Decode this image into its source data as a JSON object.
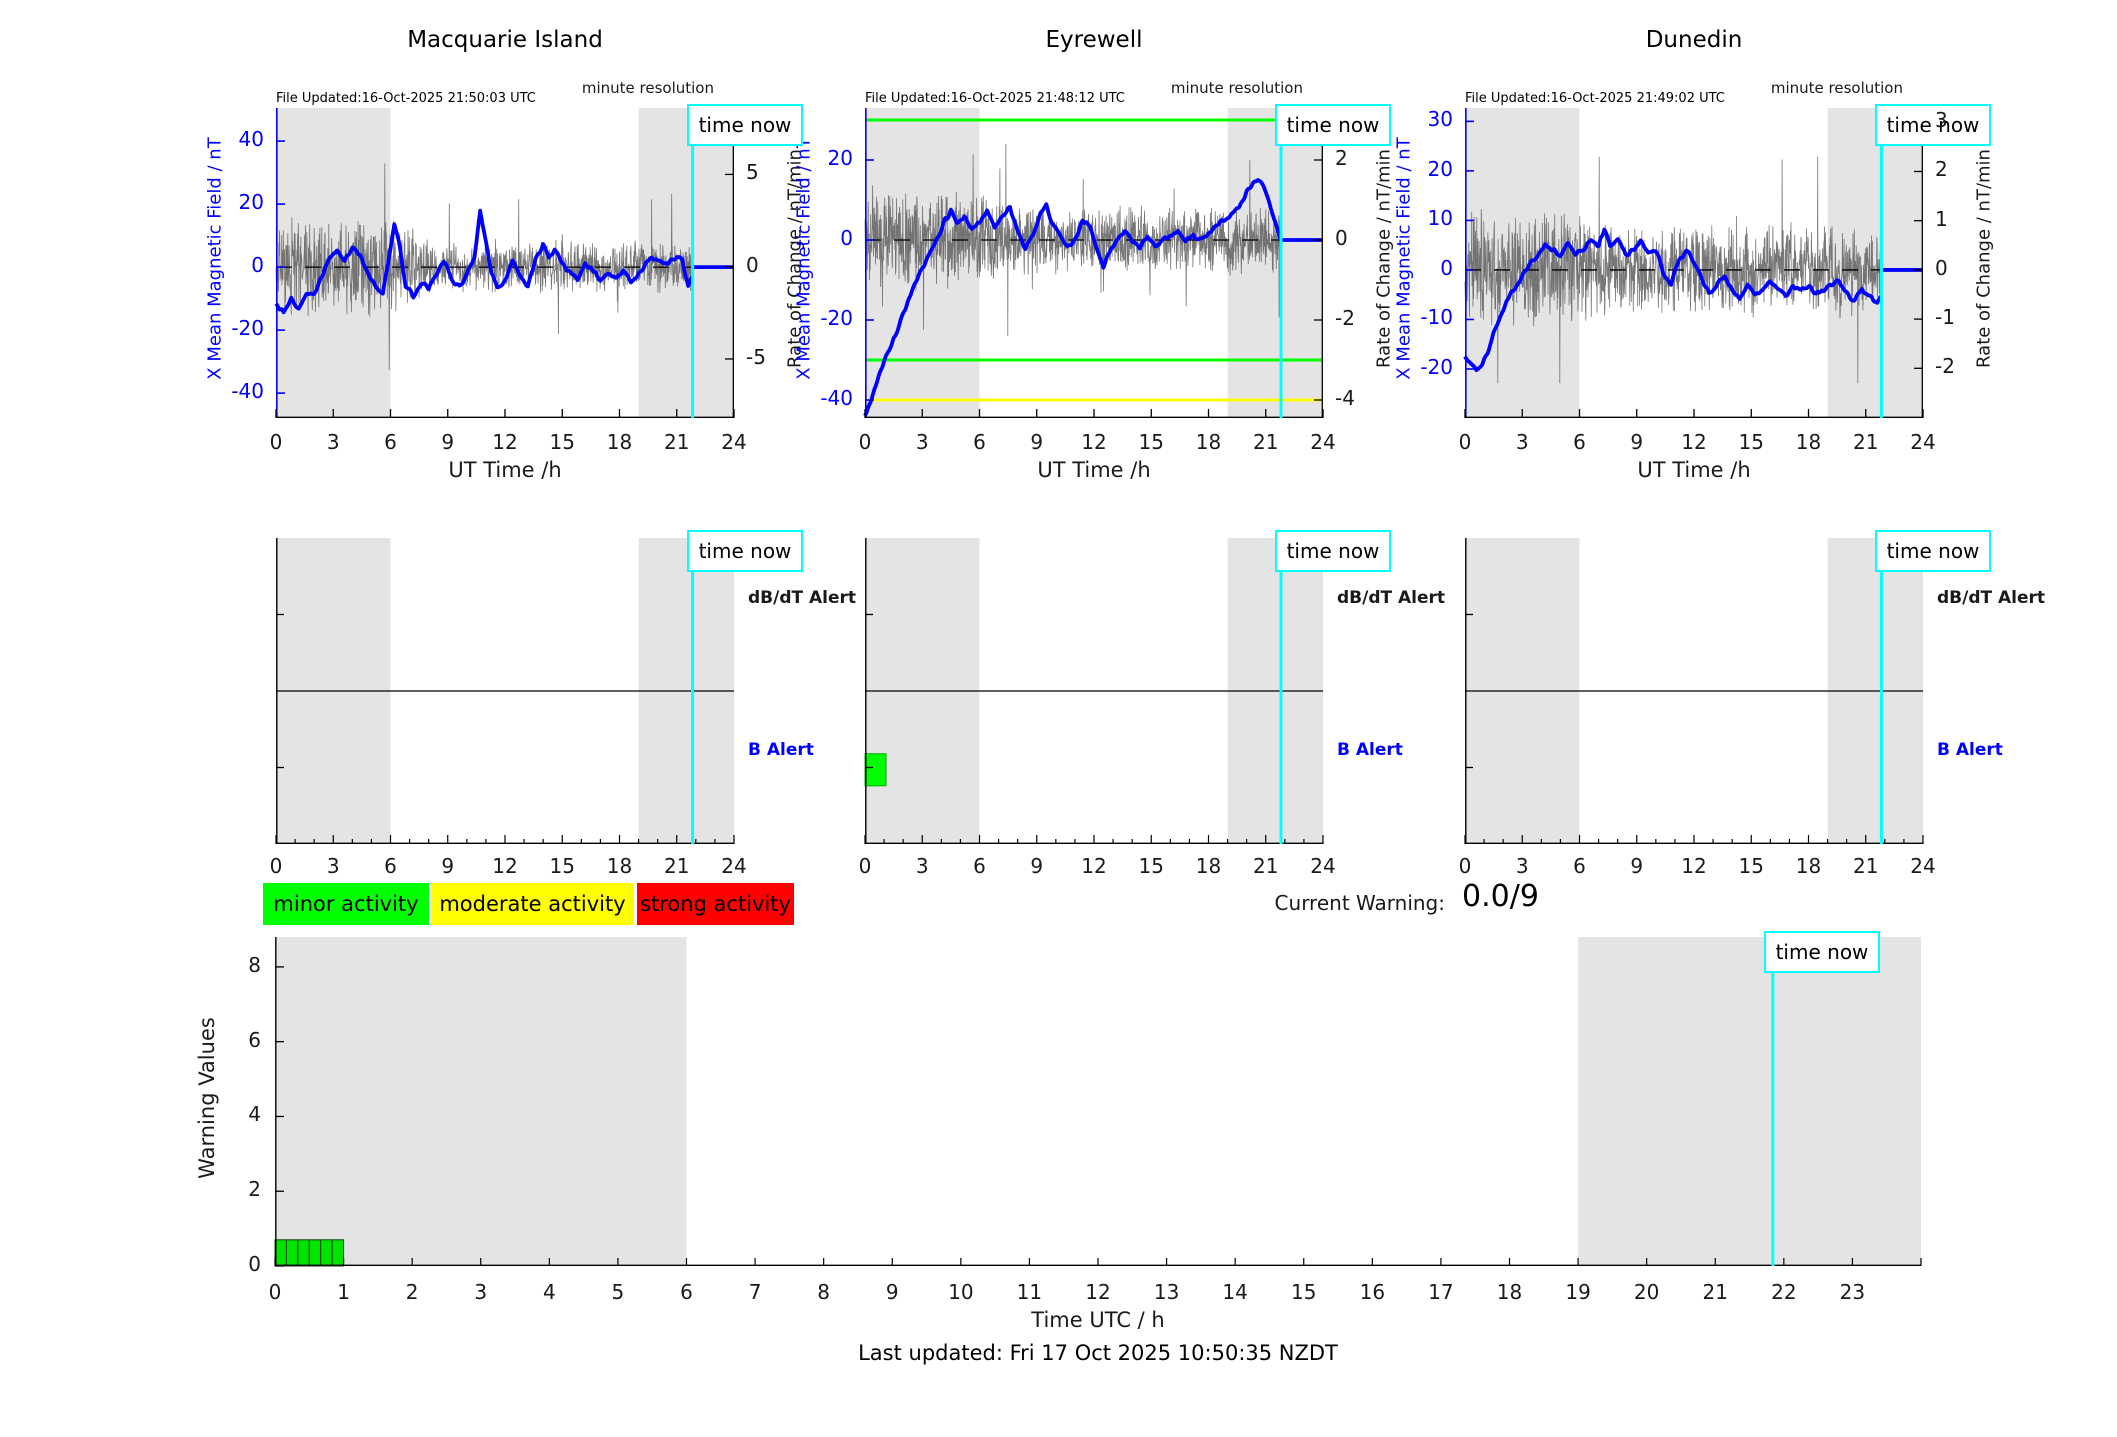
{
  "labels": {
    "time_now": "time now",
    "db_dt_alert": "dB/dT Alert",
    "b_alert": "B Alert"
  },
  "colors": {
    "night_band": "#e4e4e4",
    "mean_field": "#0000ff",
    "noise": "#5f5f5f",
    "time_now_line": "#00ffff",
    "axis": "#1a1a1a",
    "zero_line": "#000000",
    "threshold_green": "#00ff00",
    "threshold_yellow": "#ffff00",
    "alert_bar_green": "#00ff00",
    "warning_bar_green": "#00e400"
  },
  "legend": [
    {
      "label": "minor activity",
      "color": "#00ff00"
    },
    {
      "label": "moderate activity",
      "color": "#ffff00"
    },
    {
      "label": "strong activity",
      "color": "#ff0000"
    }
  ],
  "current_warning": {
    "label": "Current Warning:",
    "value": "0.0/9"
  },
  "footer": {
    "last_updated": "Last updated: Fri 17 Oct 2025 10:50:35 NZDT"
  },
  "chart_data": [
    {
      "id": "chart-macquarie",
      "type": "line",
      "station": "Macquarie Island",
      "title": "Macquarie Island",
      "file_updated": "File Updated:16-Oct-2025 21:50:03 UTC",
      "minute_resolution": "minute resolution",
      "xlabel": "UT Time /h",
      "ylabel_left": "X Mean Magnetic Field / nT",
      "ylabel_right": "Rate of Change / nT/min",
      "xlim": [
        0,
        24
      ],
      "xticks": [
        0,
        3,
        6,
        9,
        12,
        15,
        18,
        21,
        24
      ],
      "ylim_left": [
        -47.9,
        50.5
      ],
      "yticks_left": [
        40,
        20,
        0,
        -20,
        -40
      ],
      "ylim_right": [
        -8.2,
        8.6
      ],
      "yticks_right": [
        5,
        0,
        -5
      ],
      "night_bands": [
        [
          0,
          6
        ],
        [
          19,
          24
        ]
      ],
      "time_now": 21.83,
      "threshold_lines": [],
      "post_now_value": 0,
      "mean_field": {
        "name": "X Mean Magnetic Field",
        "jitter": 1.3,
        "points": [
          [
            0,
            -12
          ],
          [
            0.4,
            -14
          ],
          [
            0.8,
            -10
          ],
          [
            1.2,
            -13
          ],
          [
            1.6,
            -9
          ],
          [
            2,
            -8
          ],
          [
            2.4,
            -3
          ],
          [
            2.8,
            3
          ],
          [
            3.2,
            5
          ],
          [
            3.6,
            2
          ],
          [
            4,
            6
          ],
          [
            4.4,
            4
          ],
          [
            4.8,
            -2
          ],
          [
            5.2,
            -6
          ],
          [
            5.6,
            -8
          ],
          [
            5.9,
            2
          ],
          [
            6.2,
            14
          ],
          [
            6.5,
            6
          ],
          [
            6.8,
            -6
          ],
          [
            7.2,
            -9
          ],
          [
            7.6,
            -5
          ],
          [
            8,
            -7
          ],
          [
            8.4,
            -2
          ],
          [
            8.8,
            2
          ],
          [
            9.2,
            -4
          ],
          [
            9.6,
            -6
          ],
          [
            10,
            -2
          ],
          [
            10.4,
            3
          ],
          [
            10.7,
            18
          ],
          [
            11,
            8
          ],
          [
            11.3,
            -2
          ],
          [
            11.6,
            -6
          ],
          [
            12,
            -4
          ],
          [
            12.4,
            2
          ],
          [
            12.8,
            -3
          ],
          [
            13.2,
            -6
          ],
          [
            13.6,
            2
          ],
          [
            14,
            7
          ],
          [
            14.3,
            3
          ],
          [
            14.6,
            6
          ],
          [
            15,
            1
          ],
          [
            15.4,
            -2
          ],
          [
            15.8,
            -4
          ],
          [
            16.2,
            1
          ],
          [
            16.6,
            -1
          ],
          [
            17,
            -4
          ],
          [
            17.4,
            -2
          ],
          [
            17.8,
            -3
          ],
          [
            18.2,
            -1
          ],
          [
            18.6,
            -5
          ],
          [
            19,
            -2
          ],
          [
            19.4,
            1
          ],
          [
            19.8,
            3
          ],
          [
            20.2,
            2
          ],
          [
            20.6,
            1
          ],
          [
            21,
            3
          ],
          [
            21.3,
            2
          ],
          [
            21.6,
            -6
          ],
          [
            21.83,
            -2
          ]
        ]
      },
      "rate": {
        "name": "Rate of Change (minute resolution)",
        "seed": 11,
        "amplitude_night": 1.6,
        "amplitude_day": 0.85,
        "max": 5.6
      }
    },
    {
      "id": "chart-eyrewell",
      "type": "line",
      "station": "Eyrewell",
      "title": "Eyrewell",
      "file_updated": "File Updated:16-Oct-2025 21:48:12 UTC",
      "minute_resolution": "minute resolution",
      "xlabel": "UT Time /h",
      "ylabel_left": "X Mean Magnetic Field / nT",
      "ylabel_right": "Rate of Change / nT/min",
      "xlim": [
        0,
        24
      ],
      "xticks": [
        0,
        3,
        6,
        9,
        12,
        15,
        18,
        21,
        24
      ],
      "ylim_left": [
        -44.5,
        33
      ],
      "yticks_left": [
        20,
        0,
        -20,
        -40
      ],
      "ylim_right": [
        -4.45,
        3.3
      ],
      "yticks_right": [
        2,
        0,
        -2,
        -4
      ],
      "night_bands": [
        [
          0,
          6
        ],
        [
          19,
          24
        ]
      ],
      "time_now": 21.8,
      "threshold_lines": [
        {
          "value": 30,
          "color": "#00ff00"
        },
        {
          "value": -30,
          "color": "#00ff00"
        },
        {
          "value": -40,
          "color": "#ffff00"
        }
      ],
      "post_now_value": 0,
      "mean_field": {
        "name": "X Mean Magnetic Field",
        "jitter": 1.1,
        "points": [
          [
            0,
            -44
          ],
          [
            0.3,
            -40
          ],
          [
            0.6,
            -36
          ],
          [
            1,
            -30
          ],
          [
            1.4,
            -26
          ],
          [
            1.8,
            -21
          ],
          [
            2.2,
            -16
          ],
          [
            2.6,
            -11
          ],
          [
            3,
            -7
          ],
          [
            3.4,
            -3
          ],
          [
            3.8,
            1
          ],
          [
            4.2,
            5
          ],
          [
            4.5,
            7
          ],
          [
            4.8,
            4
          ],
          [
            5.2,
            6
          ],
          [
            5.6,
            3
          ],
          [
            6,
            4
          ],
          [
            6.4,
            8
          ],
          [
            6.8,
            3
          ],
          [
            7.2,
            6
          ],
          [
            7.6,
            8
          ],
          [
            8,
            2
          ],
          [
            8.4,
            -2
          ],
          [
            8.8,
            1
          ],
          [
            9.2,
            7
          ],
          [
            9.5,
            9
          ],
          [
            9.8,
            4
          ],
          [
            10.2,
            1
          ],
          [
            10.6,
            -2
          ],
          [
            11,
            0
          ],
          [
            11.4,
            5
          ],
          [
            11.8,
            3
          ],
          [
            12.2,
            -3
          ],
          [
            12.5,
            -7
          ],
          [
            12.8,
            -3
          ],
          [
            13.2,
            0
          ],
          [
            13.6,
            2
          ],
          [
            14,
            0
          ],
          [
            14.4,
            -2
          ],
          [
            14.8,
            1
          ],
          [
            15.2,
            -2
          ],
          [
            15.6,
            0
          ],
          [
            16,
            1
          ],
          [
            16.4,
            2
          ],
          [
            16.8,
            0
          ],
          [
            17.2,
            1
          ],
          [
            17.6,
            0
          ],
          [
            18,
            2
          ],
          [
            18.4,
            4
          ],
          [
            18.8,
            5
          ],
          [
            19.2,
            6
          ],
          [
            19.6,
            8
          ],
          [
            20,
            12
          ],
          [
            20.3,
            14
          ],
          [
            20.6,
            15
          ],
          [
            20.9,
            13
          ],
          [
            21.2,
            9
          ],
          [
            21.5,
            5
          ],
          [
            21.8,
            0
          ]
        ]
      },
      "rate": {
        "name": "Rate of Change (minute resolution)",
        "seed": 22,
        "amplitude_night": 0.75,
        "amplitude_day": 0.5,
        "max": 2.4
      }
    },
    {
      "id": "chart-dunedin",
      "type": "line",
      "station": "Dunedin",
      "title": "Dunedin",
      "file_updated": "File Updated:16-Oct-2025 21:49:02 UTC",
      "minute_resolution": "minute resolution",
      "xlabel": "UT Time /h",
      "ylabel_left": "X Mean Magnetic Field / nT",
      "ylabel_right": "Rate of Change / nT/min",
      "xlim": [
        0,
        24
      ],
      "xticks": [
        0,
        3,
        6,
        9,
        12,
        15,
        18,
        21,
        24
      ],
      "ylim_left": [
        -29.9,
        32.7
      ],
      "yticks_left": [
        30,
        20,
        10,
        0,
        -10,
        -20
      ],
      "ylim_right": [
        -3.01,
        3.29
      ],
      "yticks_right": [
        3,
        2,
        1,
        0,
        -1,
        -2
      ],
      "night_bands": [
        [
          0,
          6
        ],
        [
          19,
          24
        ]
      ],
      "time_now": 21.82,
      "threshold_lines": [],
      "post_now_value": 0,
      "mean_field": {
        "name": "X Mean Magnetic Field",
        "jitter": 0.9,
        "points": [
          [
            0,
            -17
          ],
          [
            0.3,
            -19
          ],
          [
            0.6,
            -20
          ],
          [
            0.9,
            -19
          ],
          [
            1.2,
            -17
          ],
          [
            1.5,
            -13
          ],
          [
            1.8,
            -10
          ],
          [
            2.1,
            -7
          ],
          [
            2.4,
            -5
          ],
          [
            2.7,
            -3
          ],
          [
            3,
            -1
          ],
          [
            3.4,
            1
          ],
          [
            3.8,
            3
          ],
          [
            4.2,
            5
          ],
          [
            4.6,
            4
          ],
          [
            5,
            3
          ],
          [
            5.4,
            5
          ],
          [
            5.8,
            3
          ],
          [
            6.2,
            4
          ],
          [
            6.6,
            6
          ],
          [
            7,
            5
          ],
          [
            7.3,
            8
          ],
          [
            7.6,
            5
          ],
          [
            8,
            6
          ],
          [
            8.4,
            3
          ],
          [
            8.8,
            4
          ],
          [
            9.2,
            6
          ],
          [
            9.6,
            3
          ],
          [
            10,
            4
          ],
          [
            10.4,
            -1
          ],
          [
            10.8,
            -3
          ],
          [
            11.2,
            2
          ],
          [
            11.6,
            4
          ],
          [
            12,
            2
          ],
          [
            12.4,
            -2
          ],
          [
            12.8,
            -5
          ],
          [
            13.2,
            -3
          ],
          [
            13.6,
            -1
          ],
          [
            14,
            -4
          ],
          [
            14.4,
            -6
          ],
          [
            14.8,
            -3
          ],
          [
            15.2,
            -5
          ],
          [
            15.6,
            -4
          ],
          [
            16,
            -2
          ],
          [
            16.4,
            -4
          ],
          [
            16.8,
            -5
          ],
          [
            17.2,
            -3
          ],
          [
            17.6,
            -4
          ],
          [
            18,
            -3
          ],
          [
            18.4,
            -5
          ],
          [
            18.8,
            -4
          ],
          [
            19.2,
            -3
          ],
          [
            19.6,
            -2
          ],
          [
            20,
            -5
          ],
          [
            20.4,
            -6
          ],
          [
            20.8,
            -4
          ],
          [
            21.2,
            -5
          ],
          [
            21.6,
            -7
          ],
          [
            21.82,
            -5
          ]
        ]
      },
      "rate": {
        "name": "Rate of Change (minute resolution)",
        "seed": 33,
        "amplitude_night": 0.7,
        "amplitude_day": 0.55,
        "max": 2.3
      }
    },
    {
      "id": "chart-alert-0",
      "type": "alert",
      "station": "Macquarie Island",
      "lanes": [
        "dB/dT Alert",
        "B Alert"
      ],
      "xlim": [
        0,
        24
      ],
      "xticks": [
        0,
        3,
        6,
        9,
        12,
        15,
        18,
        21,
        24
      ],
      "night_bands": [
        [
          0,
          6
        ],
        [
          19,
          24
        ]
      ],
      "time_now": 21.83,
      "bars": []
    },
    {
      "id": "chart-alert-1",
      "type": "alert",
      "station": "Eyrewell",
      "lanes": [
        "dB/dT Alert",
        "B Alert"
      ],
      "xlim": [
        0,
        24
      ],
      "xticks": [
        0,
        3,
        6,
        9,
        12,
        15,
        18,
        21,
        24
      ],
      "night_bands": [
        [
          0,
          6
        ],
        [
          19,
          24
        ]
      ],
      "time_now": 21.8,
      "bars": [
        {
          "x_start": 0,
          "x_end": 1.1,
          "lane": "B Alert",
          "level": "minor",
          "color": "#00ff00"
        }
      ]
    },
    {
      "id": "chart-alert-2",
      "type": "alert",
      "station": "Dunedin",
      "lanes": [
        "dB/dT Alert",
        "B Alert"
      ],
      "xlim": [
        0,
        24
      ],
      "xticks": [
        0,
        3,
        6,
        9,
        12,
        15,
        18,
        21,
        24
      ],
      "night_bands": [
        [
          0,
          6
        ],
        [
          19,
          24
        ]
      ],
      "time_now": 21.82,
      "bars": []
    },
    {
      "id": "chart-warning",
      "type": "bar",
      "ylabel": "Warning Values",
      "xlabel": "Time UTC / h",
      "xlim": [
        0,
        24
      ],
      "ylim": [
        0,
        8.8
      ],
      "yticks": [
        0,
        2,
        4,
        6,
        8
      ],
      "xticks": [
        0,
        1,
        2,
        3,
        4,
        5,
        6,
        7,
        8,
        9,
        10,
        11,
        12,
        13,
        14,
        15,
        16,
        17,
        18,
        19,
        20,
        21,
        22,
        23
      ],
      "night_bands": [
        [
          0,
          6
        ],
        [
          19,
          24
        ]
      ],
      "time_now": 21.84,
      "bars": [
        {
          "x_start": 0,
          "x_end": 1,
          "segments": 6,
          "value": 0.7,
          "color": "#00e400"
        }
      ]
    }
  ]
}
